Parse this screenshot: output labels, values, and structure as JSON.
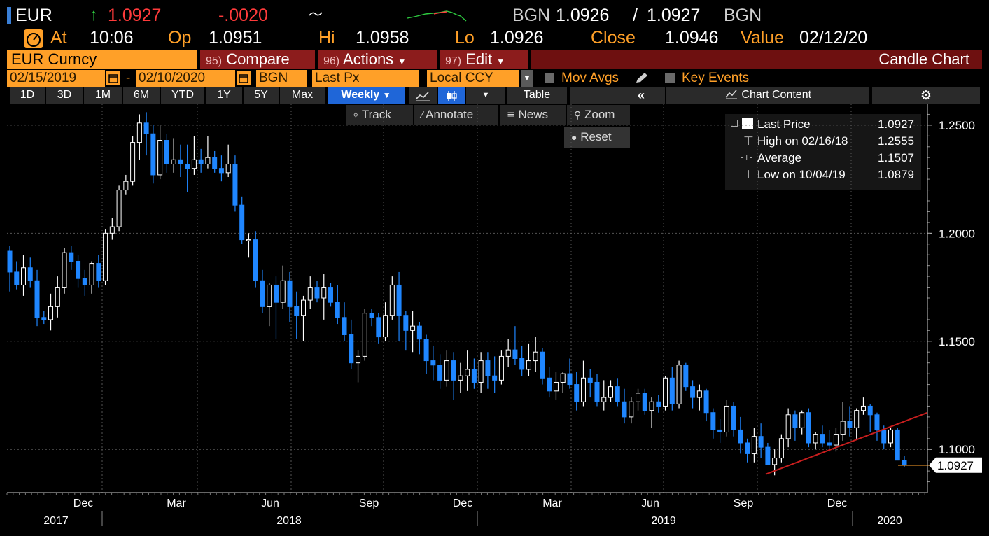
{
  "ticker": {
    "symbol": "EUR",
    "last": "1.0927",
    "change": "-.0020",
    "bid_source": "BGN",
    "bid": "1.0926",
    "separator": "/",
    "ask": "1.0927",
    "ask_source": "BGN"
  },
  "quote": {
    "at_label": "At",
    "at_value": "10:06",
    "op_label": "Op",
    "op_value": "1.0951",
    "hi_label": "Hi",
    "hi_value": "1.0958",
    "lo_label": "Lo",
    "lo_value": "1.0926",
    "close_label": "Close",
    "close_value": "1.0946",
    "value_label": "Value",
    "value_date": "02/12/20"
  },
  "command_bar": {
    "security": "EUR Curncy",
    "compare_num": "95)",
    "compare_label": "Compare",
    "actions_num": "96)",
    "actions_label": "Actions",
    "edit_num": "97)",
    "edit_label": "Edit",
    "chart_type": "Candle Chart"
  },
  "settings_bar": {
    "start_date": "02/15/2019",
    "dash": "-",
    "end_date": "02/10/2020",
    "source": "BGN",
    "field": "Last Px",
    "currency": "Local CCY",
    "mov_avgs": "Mov Avgs",
    "key_events": "Key Events"
  },
  "period_bar": {
    "periods": [
      "1D",
      "3D",
      "1M",
      "6M",
      "YTD",
      "1Y",
      "5Y",
      "Max"
    ],
    "frequency": "Weekly",
    "table": "Table",
    "collapse": "«",
    "chart_content": "Chart Content"
  },
  "chart_tools": {
    "track": "Track",
    "annotate": "Annotate",
    "news": "News",
    "zoom": "Zoom",
    "reset": "Reset"
  },
  "legend": {
    "last_label": "Last Price",
    "last_value": "1.0927",
    "high_label": "High on 02/16/18",
    "high_value": "1.2555",
    "avg_label": "Average",
    "avg_value": "1.1507",
    "low_label": "Low on 10/04/19",
    "low_value": "1.0879"
  },
  "colors": {
    "up_candle": "#ffffff",
    "down_candle": "#1f86ff",
    "trendline": "#c81e1e",
    "last_price_line": "#ffa028",
    "amber": "#ffa028"
  },
  "chart_data": {
    "type": "candlestick",
    "frequency": "weekly",
    "ylim": [
      1.08,
      1.26
    ],
    "yticks": [
      "1.2500",
      "1.2000",
      "1.1500",
      "1.1000"
    ],
    "x_month_labels": [
      "Dec",
      "Mar",
      "Jun",
      "Sep",
      "Dec",
      "Mar",
      "Jun",
      "Sep",
      "Dec"
    ],
    "x_year_labels": [
      "2017",
      "2018",
      "2019",
      "2020"
    ],
    "last_price_tag": "1.0927",
    "series": [
      {
        "name": "EUR Curncy",
        "candles": [
          [
            1.192,
            1.194,
            1.173,
            1.182
          ],
          [
            1.182,
            1.187,
            1.174,
            1.176
          ],
          [
            1.176,
            1.19,
            1.171,
            1.184
          ],
          [
            1.184,
            1.189,
            1.175,
            1.178
          ],
          [
            1.178,
            1.183,
            1.157,
            1.161
          ],
          [
            1.161,
            1.164,
            1.158,
            1.16
          ],
          [
            1.16,
            1.172,
            1.155,
            1.166
          ],
          [
            1.166,
            1.18,
            1.161,
            1.175
          ],
          [
            1.175,
            1.193,
            1.172,
            1.191
          ],
          [
            1.191,
            1.194,
            1.183,
            1.187
          ],
          [
            1.187,
            1.19,
            1.175,
            1.179
          ],
          [
            1.179,
            1.183,
            1.171,
            1.176
          ],
          [
            1.176,
            1.187,
            1.172,
            1.186
          ],
          [
            1.186,
            1.19,
            1.175,
            1.178
          ],
          [
            1.178,
            1.202,
            1.176,
            1.2
          ],
          [
            1.2,
            1.207,
            1.197,
            1.203
          ],
          [
            1.203,
            1.222,
            1.201,
            1.22
          ],
          [
            1.22,
            1.227,
            1.218,
            1.224
          ],
          [
            1.224,
            1.245,
            1.222,
            1.242
          ],
          [
            1.242,
            1.255,
            1.234,
            1.251
          ],
          [
            1.251,
            1.256,
            1.236,
            1.246
          ],
          [
            1.246,
            1.25,
            1.223,
            1.227
          ],
          [
            1.227,
            1.25,
            1.225,
            1.243
          ],
          [
            1.243,
            1.246,
            1.228,
            1.232
          ],
          [
            1.232,
            1.244,
            1.228,
            1.234
          ],
          [
            1.234,
            1.241,
            1.226,
            1.232
          ],
          [
            1.232,
            1.241,
            1.219,
            1.23
          ],
          [
            1.23,
            1.245,
            1.227,
            1.234
          ],
          [
            1.234,
            1.239,
            1.228,
            1.232
          ],
          [
            1.232,
            1.245,
            1.23,
            1.235
          ],
          [
            1.235,
            1.238,
            1.228,
            1.23
          ],
          [
            1.23,
            1.236,
            1.224,
            1.228
          ],
          [
            1.228,
            1.241,
            1.226,
            1.232
          ],
          [
            1.232,
            1.236,
            1.21,
            1.213
          ],
          [
            1.213,
            1.217,
            1.195,
            1.197
          ],
          [
            1.197,
            1.2,
            1.189,
            1.197
          ],
          [
            1.197,
            1.201,
            1.175,
            1.178
          ],
          [
            1.178,
            1.183,
            1.163,
            1.166
          ],
          [
            1.166,
            1.177,
            1.157,
            1.176
          ],
          [
            1.176,
            1.18,
            1.151,
            1.168
          ],
          [
            1.168,
            1.185,
            1.165,
            1.178
          ],
          [
            1.178,
            1.182,
            1.159,
            1.166
          ],
          [
            1.166,
            1.173,
            1.151,
            1.162
          ],
          [
            1.162,
            1.171,
            1.15,
            1.169
          ],
          [
            1.169,
            1.18,
            1.165,
            1.175
          ],
          [
            1.175,
            1.178,
            1.168,
            1.17
          ],
          [
            1.17,
            1.181,
            1.16,
            1.175
          ],
          [
            1.175,
            1.177,
            1.166,
            1.168
          ],
          [
            1.168,
            1.176,
            1.158,
            1.161
          ],
          [
            1.161,
            1.168,
            1.15,
            1.153
          ],
          [
            1.153,
            1.16,
            1.137,
            1.14
          ],
          [
            1.14,
            1.146,
            1.131,
            1.143
          ],
          [
            1.143,
            1.165,
            1.141,
            1.163
          ],
          [
            1.163,
            1.165,
            1.157,
            1.161
          ],
          [
            1.161,
            1.163,
            1.149,
            1.152
          ],
          [
            1.152,
            1.168,
            1.15,
            1.162
          ],
          [
            1.162,
            1.18,
            1.16,
            1.176
          ],
          [
            1.176,
            1.182,
            1.15,
            1.162
          ],
          [
            1.162,
            1.164,
            1.146,
            1.155
          ],
          [
            1.155,
            1.164,
            1.145,
            1.157
          ],
          [
            1.157,
            1.159,
            1.144,
            1.151
          ],
          [
            1.151,
            1.153,
            1.135,
            1.141
          ],
          [
            1.141,
            1.148,
            1.132,
            1.139
          ],
          [
            1.139,
            1.144,
            1.128,
            1.132
          ],
          [
            1.132,
            1.146,
            1.129,
            1.141
          ],
          [
            1.141,
            1.145,
            1.123,
            1.132
          ],
          [
            1.132,
            1.14,
            1.126,
            1.134
          ],
          [
            1.134,
            1.146,
            1.127,
            1.137
          ],
          [
            1.137,
            1.142,
            1.128,
            1.131
          ],
          [
            1.131,
            1.145,
            1.126,
            1.141
          ],
          [
            1.141,
            1.145,
            1.128,
            1.134
          ],
          [
            1.134,
            1.143,
            1.126,
            1.132
          ],
          [
            1.132,
            1.146,
            1.13,
            1.143
          ],
          [
            1.143,
            1.151,
            1.138,
            1.146
          ],
          [
            1.146,
            1.157,
            1.139,
            1.142
          ],
          [
            1.142,
            1.148,
            1.134,
            1.137
          ],
          [
            1.137,
            1.149,
            1.134,
            1.141
          ],
          [
            1.141,
            1.152,
            1.136,
            1.145
          ],
          [
            1.145,
            1.147,
            1.13,
            1.133
          ],
          [
            1.133,
            1.138,
            1.124,
            1.127
          ],
          [
            1.127,
            1.136,
            1.123,
            1.131
          ],
          [
            1.131,
            1.136,
            1.126,
            1.135
          ],
          [
            1.135,
            1.142,
            1.128,
            1.13
          ],
          [
            1.13,
            1.136,
            1.118,
            1.122
          ],
          [
            1.122,
            1.141,
            1.12,
            1.133
          ],
          [
            1.133,
            1.137,
            1.124,
            1.131
          ],
          [
            1.131,
            1.135,
            1.12,
            1.122
          ],
          [
            1.122,
            1.132,
            1.118,
            1.124
          ],
          [
            1.124,
            1.132,
            1.122,
            1.129
          ],
          [
            1.129,
            1.133,
            1.12,
            1.122
          ],
          [
            1.122,
            1.128,
            1.112,
            1.115
          ],
          [
            1.115,
            1.124,
            1.112,
            1.122
          ],
          [
            1.122,
            1.128,
            1.118,
            1.126
          ],
          [
            1.126,
            1.128,
            1.116,
            1.118
          ],
          [
            1.118,
            1.124,
            1.11,
            1.122
          ],
          [
            1.122,
            1.125,
            1.117,
            1.12
          ],
          [
            1.12,
            1.134,
            1.118,
            1.133
          ],
          [
            1.133,
            1.138,
            1.118,
            1.121
          ],
          [
            1.121,
            1.141,
            1.119,
            1.139
          ],
          [
            1.139,
            1.14,
            1.127,
            1.129
          ],
          [
            1.129,
            1.132,
            1.119,
            1.124
          ],
          [
            1.124,
            1.13,
            1.118,
            1.127
          ],
          [
            1.127,
            1.128,
            1.113,
            1.117
          ],
          [
            1.117,
            1.119,
            1.105,
            1.109
          ],
          [
            1.109,
            1.114,
            1.103,
            1.108
          ],
          [
            1.108,
            1.123,
            1.106,
            1.12
          ],
          [
            1.12,
            1.122,
            1.106,
            1.109
          ],
          [
            1.109,
            1.115,
            1.098,
            1.103
          ],
          [
            1.103,
            1.105,
            1.094,
            1.098
          ],
          [
            1.098,
            1.11,
            1.094,
            1.106
          ],
          [
            1.106,
            1.112,
            1.096,
            1.101
          ],
          [
            1.101,
            1.103,
            1.093,
            1.093
          ],
          [
            1.093,
            1.1,
            1.088,
            1.096
          ],
          [
            1.096,
            1.107,
            1.094,
            1.105
          ],
          [
            1.105,
            1.119,
            1.101,
            1.116
          ],
          [
            1.116,
            1.118,
            1.104,
            1.11
          ],
          [
            1.11,
            1.118,
            1.107,
            1.117
          ],
          [
            1.117,
            1.119,
            1.101,
            1.103
          ],
          [
            1.103,
            1.108,
            1.1,
            1.107
          ],
          [
            1.107,
            1.111,
            1.101,
            1.103
          ],
          [
            1.103,
            1.109,
            1.099,
            1.102
          ],
          [
            1.102,
            1.11,
            1.099,
            1.107
          ],
          [
            1.107,
            1.122,
            1.104,
            1.113
          ],
          [
            1.113,
            1.12,
            1.106,
            1.11
          ],
          [
            1.11,
            1.119,
            1.105,
            1.118
          ],
          [
            1.118,
            1.124,
            1.116,
            1.12
          ],
          [
            1.12,
            1.121,
            1.108,
            1.116
          ],
          [
            1.116,
            1.117,
            1.104,
            1.109
          ],
          [
            1.109,
            1.111,
            1.1,
            1.103
          ],
          [
            1.103,
            1.11,
            1.101,
            1.109
          ],
          [
            1.109,
            1.11,
            1.095,
            1.095
          ],
          [
            1.095,
            1.097,
            1.092,
            1.093
          ]
        ]
      }
    ],
    "trendline": {
      "from": [
        1.0885
      ],
      "to": [
        1.117
      ]
    },
    "last_price": 1.0927
  }
}
